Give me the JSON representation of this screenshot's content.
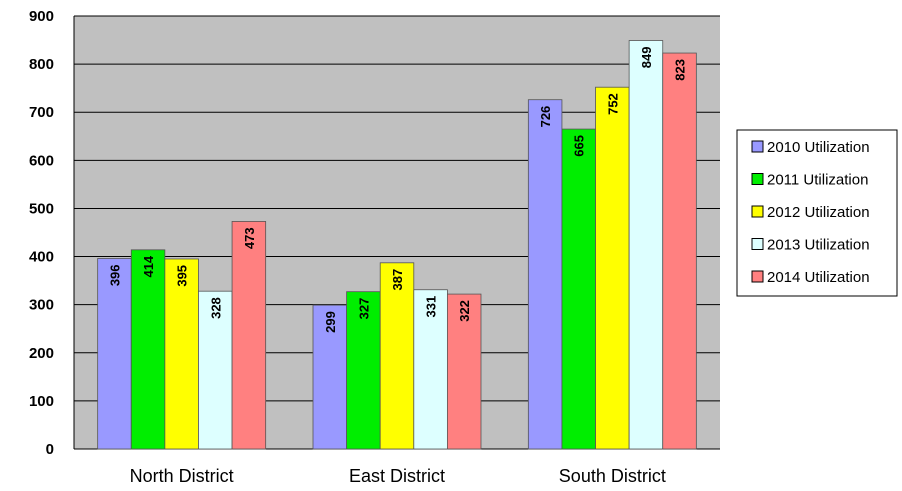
{
  "chart_data": {
    "type": "bar",
    "categories": [
      "North District",
      "East District",
      "South District"
    ],
    "series": [
      {
        "name": "2010 Utilization",
        "values": [
          396,
          299,
          726
        ],
        "color": "#9999ff"
      },
      {
        "name": "2011 Utilization",
        "values": [
          414,
          327,
          665
        ],
        "color": "#00ee00"
      },
      {
        "name": "2012 Utilization",
        "values": [
          395,
          387,
          752
        ],
        "color": "#ffff00"
      },
      {
        "name": "2013 Utilization",
        "values": [
          328,
          331,
          849
        ],
        "color": "#ddffff"
      },
      {
        "name": "2014 Utilization",
        "values": [
          473,
          322,
          823
        ],
        "color": "#ff8080"
      }
    ],
    "ylim": [
      0,
      900
    ],
    "yticks": [
      0,
      100,
      200,
      300,
      400,
      500,
      600,
      700,
      800,
      900
    ],
    "grid": true,
    "legend": "right",
    "plot_background": "#c0c0c0",
    "data_labels": "inside-top-vertical"
  }
}
